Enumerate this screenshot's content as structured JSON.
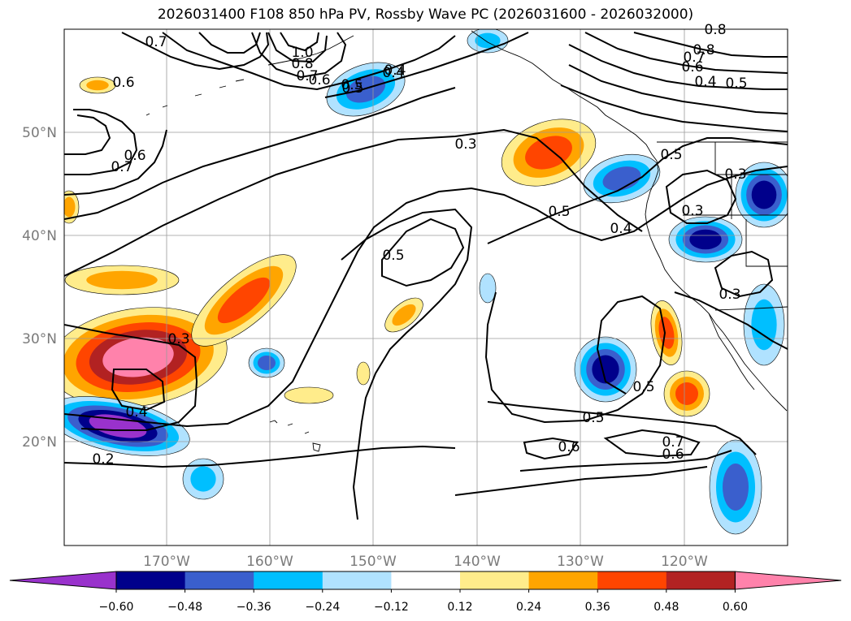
{
  "title": "2026031400 F108 850 hPa PV, Rossby Wave PC (2026031600 - 2026032000)",
  "map": {
    "lon_labels": [
      "170°W",
      "160°W",
      "150°W",
      "140°W",
      "130°W",
      "120°W"
    ],
    "lat_labels": [
      "50°N",
      "40°N",
      "30°N",
      "20°N"
    ],
    "contour_labels": [
      "0.7",
      "0.6",
      "0.6",
      "0.7",
      "0.4",
      "0.5",
      "0.6",
      "0.7",
      "0.8",
      "1.0",
      "0.5",
      "0.4",
      "0.3",
      "0.5",
      "0.5",
      "0.4",
      "0.5",
      "0.8",
      "0.8",
      "0.7",
      "0.6",
      "0.4",
      "0.5",
      "0.3",
      "0.3",
      "0.3",
      "0.3",
      "0.4",
      "0.2",
      "0.5",
      "0.5",
      "0.6",
      "0.7",
      "0.6"
    ]
  },
  "colorbar": {
    "tick_labels": [
      "−0.60",
      "−0.48",
      "−0.36",
      "−0.24",
      "−0.12",
      "0.12",
      "0.24",
      "0.36",
      "0.48",
      "0.60"
    ],
    "colors": [
      "#9932cc",
      "#00008b",
      "#3a5fcd",
      "#00bfff",
      "#b0e2ff",
      "#ffffff",
      "#ffec8b",
      "#ffa500",
      "#ff4500",
      "#b22222",
      "#ff82ab"
    ]
  },
  "shading": {
    "neg_colors": [
      "#b0e2ff",
      "#00bfff",
      "#3a5fcd",
      "#00008b",
      "#9932cc"
    ],
    "pos_colors": [
      "#ffec8b",
      "#ffa500",
      "#ff4500",
      "#b22222",
      "#ff82ab"
    ]
  }
}
